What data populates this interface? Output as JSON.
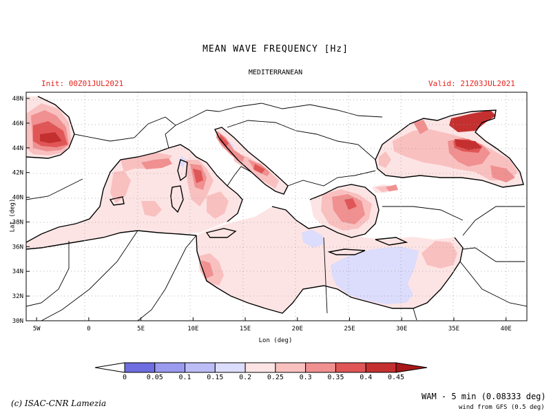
{
  "header": {
    "title": "MEAN WAVE FREQUENCY [Hz]",
    "region": "MEDITERRANEAN",
    "init": "Init: 00Z01JUL2021",
    "valid": "Valid: 21Z03JUL2021"
  },
  "map": {
    "lon_range": [
      -6,
      42
    ],
    "lat_range": [
      30,
      48.5
    ],
    "xlabel": "Lon (deg)",
    "ylabel": "Lat (deg)",
    "lon_ticks": [
      "5W",
      "0",
      "5E",
      "10E",
      "15E",
      "20E",
      "25E",
      "30E",
      "35E",
      "40E"
    ],
    "lat_ticks": [
      "30N",
      "32N",
      "34N",
      "36N",
      "38N",
      "40N",
      "42N",
      "44N",
      "46N",
      "48N"
    ],
    "grid": "dotted"
  },
  "colorbar": {
    "labels": [
      "0",
      "0.05",
      "0.1",
      "0.15",
      "0.2",
      "0.25",
      "0.3",
      "0.35",
      "0.4",
      "0.45"
    ],
    "colors": [
      "#ffffff",
      "#6e6ee0",
      "#9a9aee",
      "#bcbcf6",
      "#dcdcfc",
      "#fde4e4",
      "#f9c0c0",
      "#f09090",
      "#e05656",
      "#c43030",
      "#a81818"
    ]
  },
  "footer": {
    "copyright": "(c) ISAC-CNR Lamezia",
    "model": "WAM - 5 min (0.08333 deg)",
    "wind": "wind from GFS (0.5 deg)"
  }
}
